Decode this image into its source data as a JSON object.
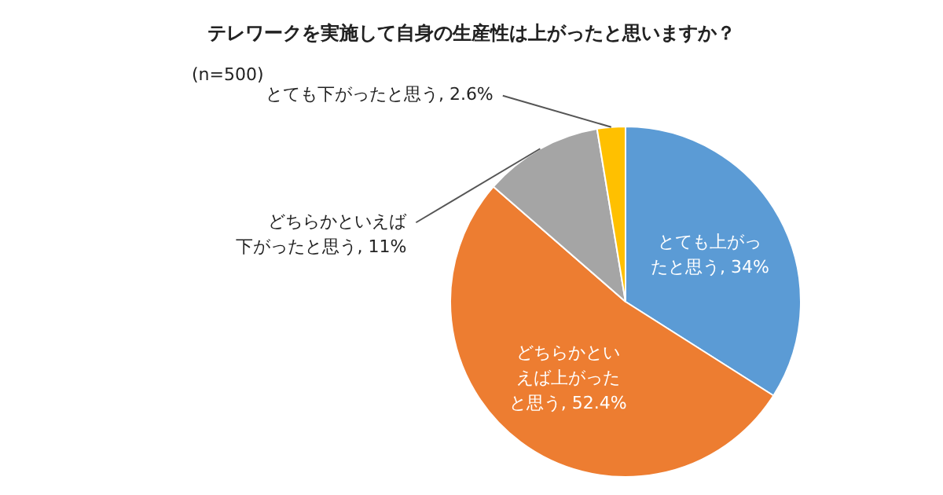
{
  "chart_data": {
    "type": "pie",
    "title": "テレワークを実施して自身の生産性は上がったと思いますか？",
    "annotations": [
      "(n=500)"
    ],
    "categories": [
      "とても上がったと思う",
      "どちらかといえば上がったと思う",
      "どちらかといえば下がったと思う",
      "とても下がったと思う"
    ],
    "values": [
      34,
      52.4,
      11,
      2.6
    ],
    "value_labels": [
      "34%",
      "52.4%",
      "11%",
      "2.6%"
    ],
    "colors": [
      "#5b9bd5",
      "#ed7d31",
      "#a5a5a5",
      "#ffc000"
    ],
    "legend": false
  }
}
